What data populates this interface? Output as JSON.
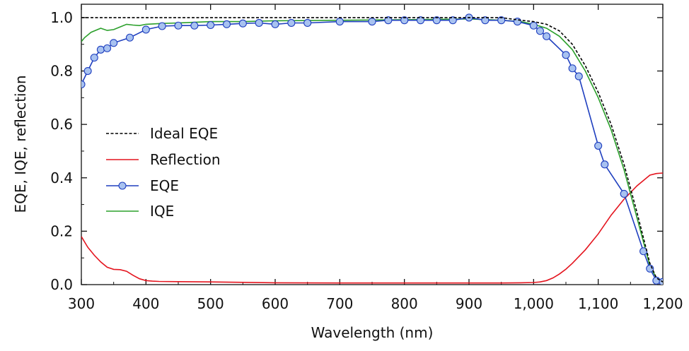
{
  "chart_data": {
    "type": "line",
    "title": "",
    "xlabel": "Wavelength (nm)",
    "ylabel": "EQE, IQE, reflection",
    "xlim": [
      300,
      1200
    ],
    "ylim": [
      0,
      1.05
    ],
    "x_ticks": [
      300,
      400,
      500,
      600,
      700,
      800,
      900,
      1000,
      1100,
      1200
    ],
    "x_tick_labels": [
      "300",
      "400",
      "500",
      "600",
      "700",
      "800",
      "900",
      "1,000",
      "1,100",
      "1,200"
    ],
    "y_ticks": [
      0,
      0.2,
      0.4,
      0.6,
      0.8,
      1.0
    ],
    "y_tick_labels": [
      "0.0",
      "0.2",
      "0.4",
      "0.6",
      "0.8",
      "1.0"
    ],
    "grid": false,
    "legend": "center-left",
    "series": [
      {
        "name": "Ideal EQE",
        "style": "dashed",
        "color": "#000000",
        "x": [
          300,
          950,
          980,
          1000,
          1020,
          1040,
          1060,
          1080,
          1100,
          1120,
          1140,
          1160,
          1180,
          1190,
          1200
        ],
        "y": [
          1.0,
          1.0,
          0.99,
          0.985,
          0.975,
          0.95,
          0.9,
          0.82,
          0.72,
          0.6,
          0.45,
          0.27,
          0.08,
          0.025,
          0.01
        ]
      },
      {
        "name": "Reflection",
        "style": "solid",
        "color": "#e4141e",
        "x": [
          300,
          310,
          320,
          330,
          340,
          350,
          360,
          370,
          380,
          390,
          400,
          410,
          420,
          450,
          500,
          600,
          700,
          800,
          900,
          950,
          980,
          1000,
          1010,
          1020,
          1030,
          1040,
          1050,
          1060,
          1080,
          1100,
          1120,
          1140,
          1160,
          1180,
          1190,
          1200
        ],
        "y": [
          0.18,
          0.14,
          0.11,
          0.085,
          0.065,
          0.057,
          0.056,
          0.05,
          0.035,
          0.022,
          0.015,
          0.013,
          0.012,
          0.011,
          0.01,
          0.007,
          0.006,
          0.006,
          0.006,
          0.006,
          0.007,
          0.008,
          0.01,
          0.015,
          0.025,
          0.04,
          0.058,
          0.08,
          0.13,
          0.19,
          0.26,
          0.32,
          0.37,
          0.41,
          0.416,
          0.418
        ]
      },
      {
        "name": "EQE",
        "style": "marker-line",
        "color": "#1f3fbf",
        "marker_fill": "#a8c2f0",
        "x": [
          300,
          310,
          320,
          330,
          340,
          350,
          375,
          400,
          425,
          450,
          475,
          500,
          525,
          550,
          575,
          600,
          625,
          650,
          700,
          750,
          775,
          800,
          825,
          850,
          875,
          900,
          925,
          950,
          975,
          1000,
          1010,
          1020,
          1050,
          1060,
          1070,
          1100,
          1110,
          1140,
          1170,
          1180,
          1190,
          1200
        ],
        "y": [
          0.75,
          0.8,
          0.85,
          0.88,
          0.885,
          0.905,
          0.925,
          0.955,
          0.968,
          0.97,
          0.97,
          0.972,
          0.975,
          0.978,
          0.98,
          0.975,
          0.98,
          0.98,
          0.985,
          0.985,
          0.99,
          0.99,
          0.99,
          0.99,
          0.99,
          1.0,
          0.99,
          0.99,
          0.985,
          0.97,
          0.95,
          0.93,
          0.86,
          0.81,
          0.78,
          0.52,
          0.45,
          0.34,
          0.125,
          0.06,
          0.015,
          0.01
        ]
      },
      {
        "name": "IQE",
        "style": "solid",
        "color": "#2ca02c",
        "x": [
          300,
          305,
          315,
          330,
          340,
          350,
          360,
          370,
          380,
          390,
          400,
          425,
          450,
          500,
          550,
          600,
          700,
          800,
          900,
          950,
          980,
          1000,
          1020,
          1040,
          1060,
          1080,
          1100,
          1120,
          1140,
          1160,
          1180,
          1190,
          1200
        ],
        "y": [
          0.91,
          0.925,
          0.945,
          0.96,
          0.952,
          0.955,
          0.965,
          0.975,
          0.972,
          0.97,
          0.975,
          0.978,
          0.98,
          0.985,
          0.985,
          0.988,
          0.99,
          0.992,
          0.995,
          0.99,
          0.985,
          0.975,
          0.96,
          0.93,
          0.88,
          0.8,
          0.7,
          0.58,
          0.43,
          0.25,
          0.07,
          0.025,
          0.015
        ]
      }
    ]
  }
}
